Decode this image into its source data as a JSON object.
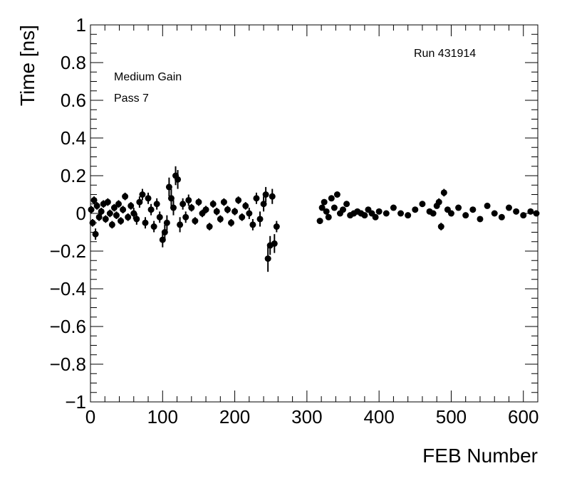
{
  "chart_data": {
    "type": "scatter",
    "annotations": [
      "Medium Gain",
      "Pass 7",
      "Run 431914"
    ],
    "xlabel": "FEB Number",
    "ylabel": "Time [ns]",
    "color": "#000000",
    "xlim": [
      0,
      620
    ],
    "ylim": [
      -1,
      1
    ],
    "xticks": [
      0,
      100,
      200,
      300,
      400,
      500,
      600
    ],
    "yticks": [
      {
        "value": -1,
        "label": "−1"
      },
      {
        "value": -0.8,
        "label": "−0.8"
      },
      {
        "value": -0.6,
        "label": "−0.6"
      },
      {
        "value": -0.4,
        "label": "−0.4"
      },
      {
        "value": -0.2,
        "label": "−0.2"
      },
      0,
      0.2,
      0.4,
      0.6,
      0.8,
      1
    ],
    "x": [
      1,
      3,
      5,
      7,
      9,
      12,
      15,
      18,
      21,
      24,
      27,
      30,
      33,
      36,
      39,
      42,
      45,
      48,
      52,
      56,
      60,
      64,
      68,
      72,
      76,
      80,
      84,
      88,
      92,
      96,
      100,
      103,
      106,
      109,
      112,
      115,
      118,
      121,
      124,
      128,
      132,
      136,
      140,
      145,
      150,
      155,
      160,
      165,
      170,
      175,
      180,
      185,
      190,
      195,
      200,
      205,
      210,
      215,
      220,
      225,
      230,
      235,
      240,
      243,
      246,
      249,
      252,
      255,
      258,
      318,
      321,
      324,
      327,
      330,
      334,
      338,
      342,
      346,
      350,
      355,
      360,
      365,
      370,
      375,
      380,
      385,
      390,
      395,
      400,
      410,
      420,
      430,
      440,
      450,
      460,
      470,
      475,
      480,
      483,
      486,
      490,
      495,
      500,
      510,
      520,
      530,
      540,
      550,
      560,
      570,
      580,
      590,
      600,
      610,
      618
    ],
    "values": [
      0.02,
      -0.05,
      0.07,
      -0.11,
      0.04,
      -0.02,
      0.01,
      0.05,
      -0.03,
      0.06,
      0.0,
      -0.06,
      0.03,
      -0.01,
      0.05,
      -0.04,
      0.02,
      0.09,
      -0.02,
      0.04,
      0.0,
      -0.03,
      0.06,
      0.1,
      -0.05,
      0.08,
      0.02,
      -0.07,
      0.05,
      -0.02,
      -0.14,
      -0.1,
      -0.05,
      0.14,
      0.08,
      0.03,
      0.2,
      0.18,
      -0.06,
      0.05,
      -0.02,
      0.07,
      0.03,
      -0.04,
      0.06,
      0.0,
      0.02,
      -0.07,
      0.05,
      0.01,
      -0.03,
      0.06,
      0.02,
      -0.05,
      0.01,
      0.07,
      -0.02,
      0.04,
      0.0,
      -0.06,
      0.08,
      -0.03,
      0.05,
      0.1,
      -0.24,
      -0.17,
      0.09,
      -0.16,
      -0.07,
      -0.04,
      0.03,
      0.06,
      0.01,
      -0.02,
      0.08,
      0.03,
      0.1,
      0.0,
      0.02,
      0.05,
      -0.01,
      0.0,
      0.01,
      0.0,
      -0.01,
      0.02,
      0.0,
      -0.02,
      0.01,
      0.0,
      0.03,
      0.0,
      -0.01,
      0.02,
      0.05,
      0.01,
      0.0,
      0.04,
      0.06,
      -0.07,
      0.11,
      0.02,
      0.0,
      0.03,
      -0.01,
      0.02,
      -0.03,
      0.04,
      0.0,
      -0.02,
      0.03,
      0.01,
      -0.01,
      0.01,
      0.0
    ],
    "errors": [
      0.02,
      0.02,
      0.02,
      0.03,
      0.02,
      0.02,
      0.02,
      0.02,
      0.02,
      0.02,
      0.02,
      0.02,
      0.02,
      0.02,
      0.02,
      0.02,
      0.02,
      0.02,
      0.02,
      0.02,
      0.03,
      0.03,
      0.03,
      0.03,
      0.03,
      0.03,
      0.03,
      0.03,
      0.03,
      0.03,
      0.04,
      0.04,
      0.04,
      0.05,
      0.05,
      0.04,
      0.05,
      0.05,
      0.04,
      0.03,
      0.03,
      0.03,
      0.02,
      0.02,
      0.02,
      0.02,
      0.02,
      0.02,
      0.02,
      0.02,
      0.02,
      0.02,
      0.02,
      0.02,
      0.02,
      0.02,
      0.02,
      0.02,
      0.03,
      0.03,
      0.03,
      0.04,
      0.04,
      0.04,
      0.07,
      0.05,
      0.04,
      0.05,
      0.03,
      0.01,
      0.01,
      0.01,
      0.01,
      0.01,
      0.01,
      0.01,
      0.01,
      0.01,
      0.01,
      0.01,
      0.01,
      0.01,
      0.01,
      0.01,
      0.01,
      0.01,
      0.01,
      0.01,
      0.01,
      0.01,
      0.01,
      0.01,
      0.01,
      0.01,
      0.01,
      0.01,
      0.01,
      0.01,
      0.02,
      0.02,
      0.02,
      0.01,
      0.01,
      0.01,
      0.01,
      0.01,
      0.01,
      0.01,
      0.01,
      0.01,
      0.01,
      0.01,
      0.01,
      0.01,
      0.01
    ]
  }
}
